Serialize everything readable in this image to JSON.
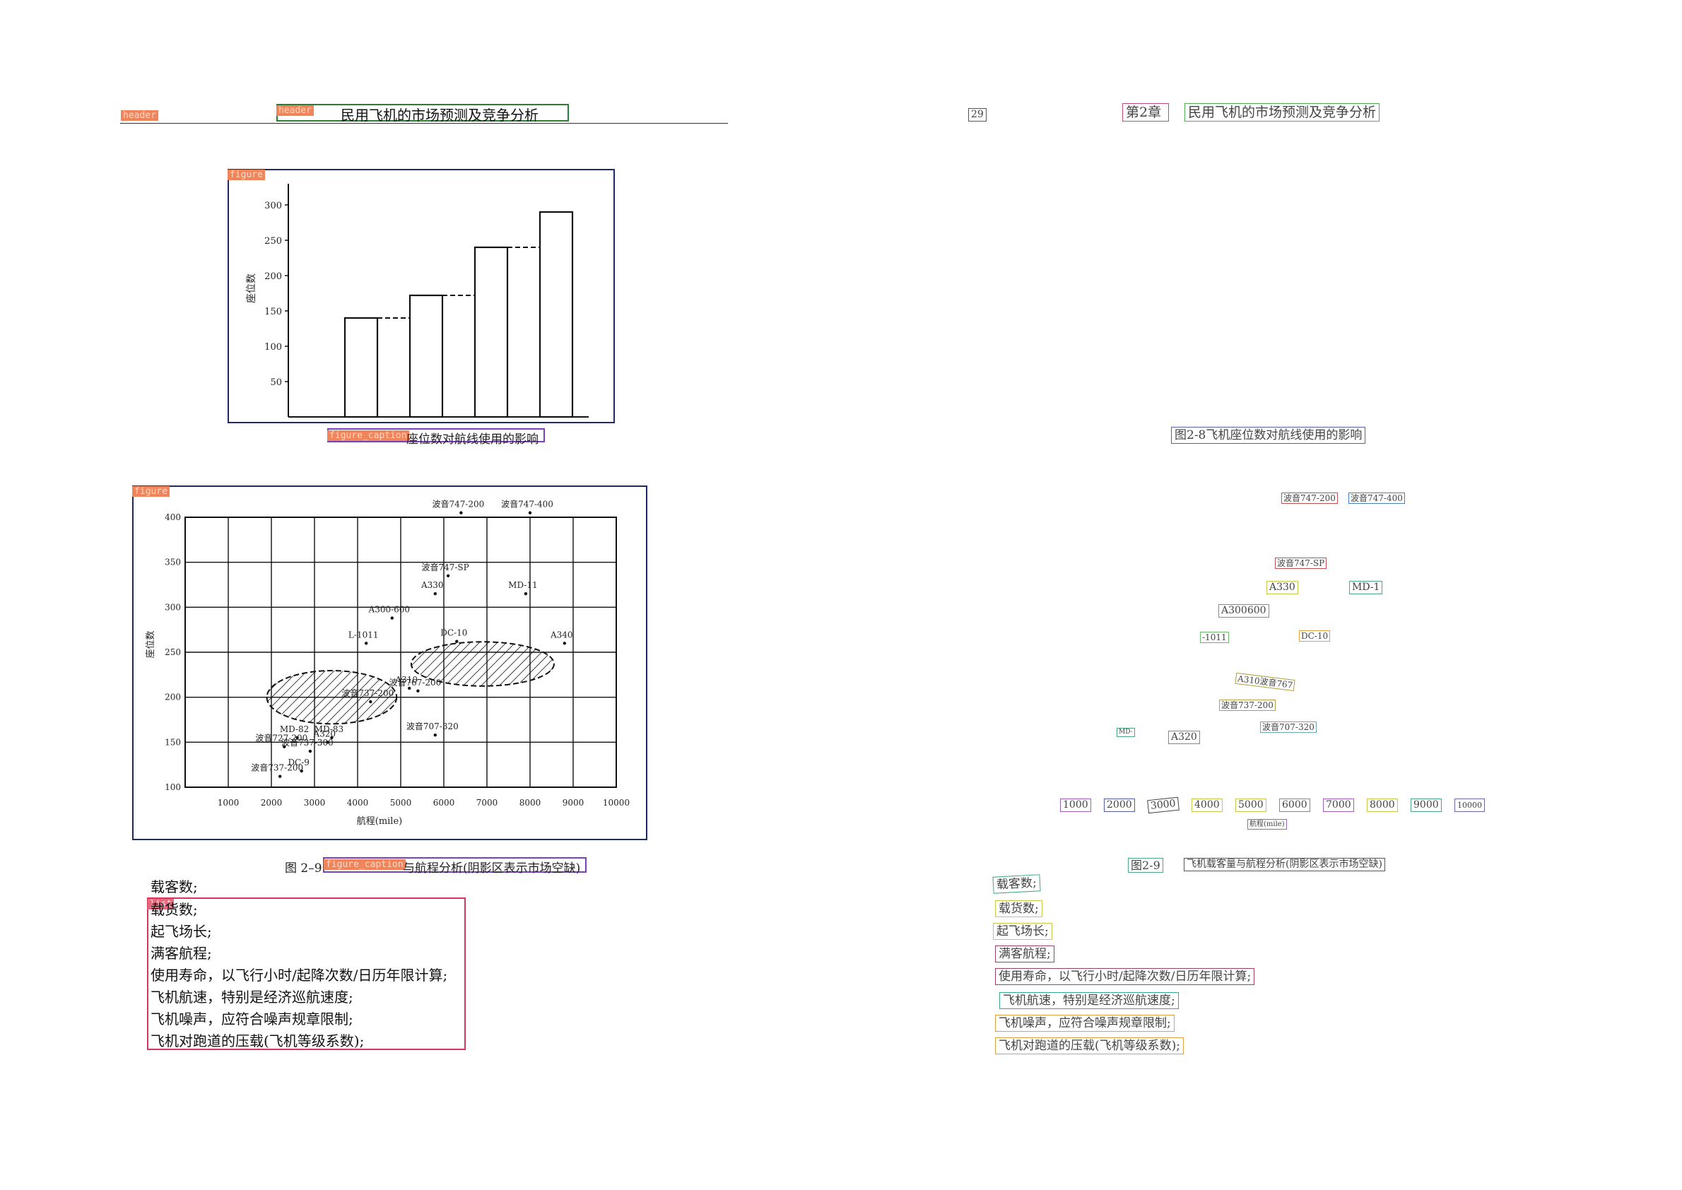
{
  "left_page": {
    "tags": {
      "header": "header",
      "figure": "figure",
      "figure_caption": "figure_caption",
      "list": "list"
    },
    "header_text": "民用飞机的市场预测及竞争分析",
    "figure1": {
      "caption_visible": "座位数对航线使用的影响"
    },
    "figure2": {
      "caption_prefix": "图 2–9",
      "caption_visible": "与航程分析(阴影区表示市场空缺)"
    },
    "list_items": [
      "载客数;",
      "载货数;",
      "起飞场长;",
      "满客航程;",
      "使用寿命，以飞行小时/起降次数/日历年限计算;",
      "飞机航速，特别是经济巡航速度;",
      "飞机噪声，应符合噪声规章限制;",
      "飞机对跑道的压载(飞机等级系数);"
    ]
  },
  "right_page": {
    "page_number": "29",
    "chapter": "第2章",
    "header_title": "民用飞机的市场预测及竞争分析",
    "figure1_caption": "图2-8飞机座位数对航线使用的影响",
    "aircraft_labels": [
      "波音747-200",
      "波音747-400",
      "波音747-SP",
      "A330",
      "MD-1",
      "A300600",
      "-1011",
      "DC-10",
      "A310波音767",
      "波音737-200",
      "波音707-320",
      "MD-",
      "A320"
    ],
    "x_ticks": [
      "1000",
      "2000",
      "3000",
      "4000",
      "5000",
      "6000",
      "7000",
      "8000",
      "9000",
      "10000"
    ],
    "x_axis_label": "航程(mile)",
    "figure2_number": "图2-9",
    "figure2_title": "飞机载客量与航程分析(阴影区表示市场空缺)",
    "list_items": [
      "载客数;",
      "载货数;",
      "起飞场长;",
      "满客航程;",
      "使用寿命，以飞行小时/起降次数/日历年限计算;",
      "飞机航速，特别是经济巡航速度;",
      "飞机噪声，应符合噪声规章限制;",
      "飞机对跑道的压载(飞机等级系数);"
    ]
  },
  "chart_data": [
    {
      "type": "bar",
      "ylabel": "座位数",
      "ylim": [
        0,
        330
      ],
      "yticks": [
        50,
        100,
        150,
        200,
        250,
        300
      ],
      "values": [
        140,
        140,
        172,
        172,
        240,
        240,
        290
      ]
    },
    {
      "type": "scatter",
      "xlabel": "航程(mile)",
      "ylabel": "座位数",
      "xlim": [
        0,
        10000
      ],
      "ylim": [
        100,
        400
      ],
      "xticks": [
        1000,
        2000,
        3000,
        4000,
        5000,
        6000,
        7000,
        8000,
        9000,
        10000
      ],
      "yticks": [
        100,
        150,
        200,
        250,
        300,
        350,
        400
      ],
      "points": [
        {
          "label": "波音747-200",
          "x": 6400,
          "y": 405
        },
        {
          "label": "波音747-400",
          "x": 8000,
          "y": 405
        },
        {
          "label": "波音747-SP",
          "x": 6100,
          "y": 335
        },
        {
          "label": "A330",
          "x": 5800,
          "y": 315
        },
        {
          "label": "MD-11",
          "x": 7900,
          "y": 315
        },
        {
          "label": "A300-600",
          "x": 4800,
          "y": 288
        },
        {
          "label": "L-1011",
          "x": 4200,
          "y": 260
        },
        {
          "label": "DC-10",
          "x": 6300,
          "y": 262
        },
        {
          "label": "A340",
          "x": 8800,
          "y": 260
        },
        {
          "label": "A310",
          "x": 5200,
          "y": 210
        },
        {
          "label": "波音767-200",
          "x": 5400,
          "y": 207
        },
        {
          "label": "波音737-200",
          "x": 4300,
          "y": 195
        },
        {
          "label": "波音707-320",
          "x": 5800,
          "y": 158
        },
        {
          "label": "MD-82",
          "x": 2600,
          "y": 155
        },
        {
          "label": "MD-83",
          "x": 3400,
          "y": 155
        },
        {
          "label": "A320",
          "x": 3300,
          "y": 150
        },
        {
          "label": "波音727-200",
          "x": 2300,
          "y": 145
        },
        {
          "label": "波音737-300",
          "x": 2900,
          "y": 140
        },
        {
          "label": "DC-9",
          "x": 2700,
          "y": 118
        },
        {
          "label": "波音737-200",
          "x": 2200,
          "y": 112
        }
      ],
      "shaded_regions": [
        {
          "cx": 3400,
          "cy": 200,
          "rx": 1700,
          "ry": 28
        },
        {
          "cx": 6900,
          "cy": 237,
          "rx": 2000,
          "ry": 23
        }
      ]
    }
  ]
}
